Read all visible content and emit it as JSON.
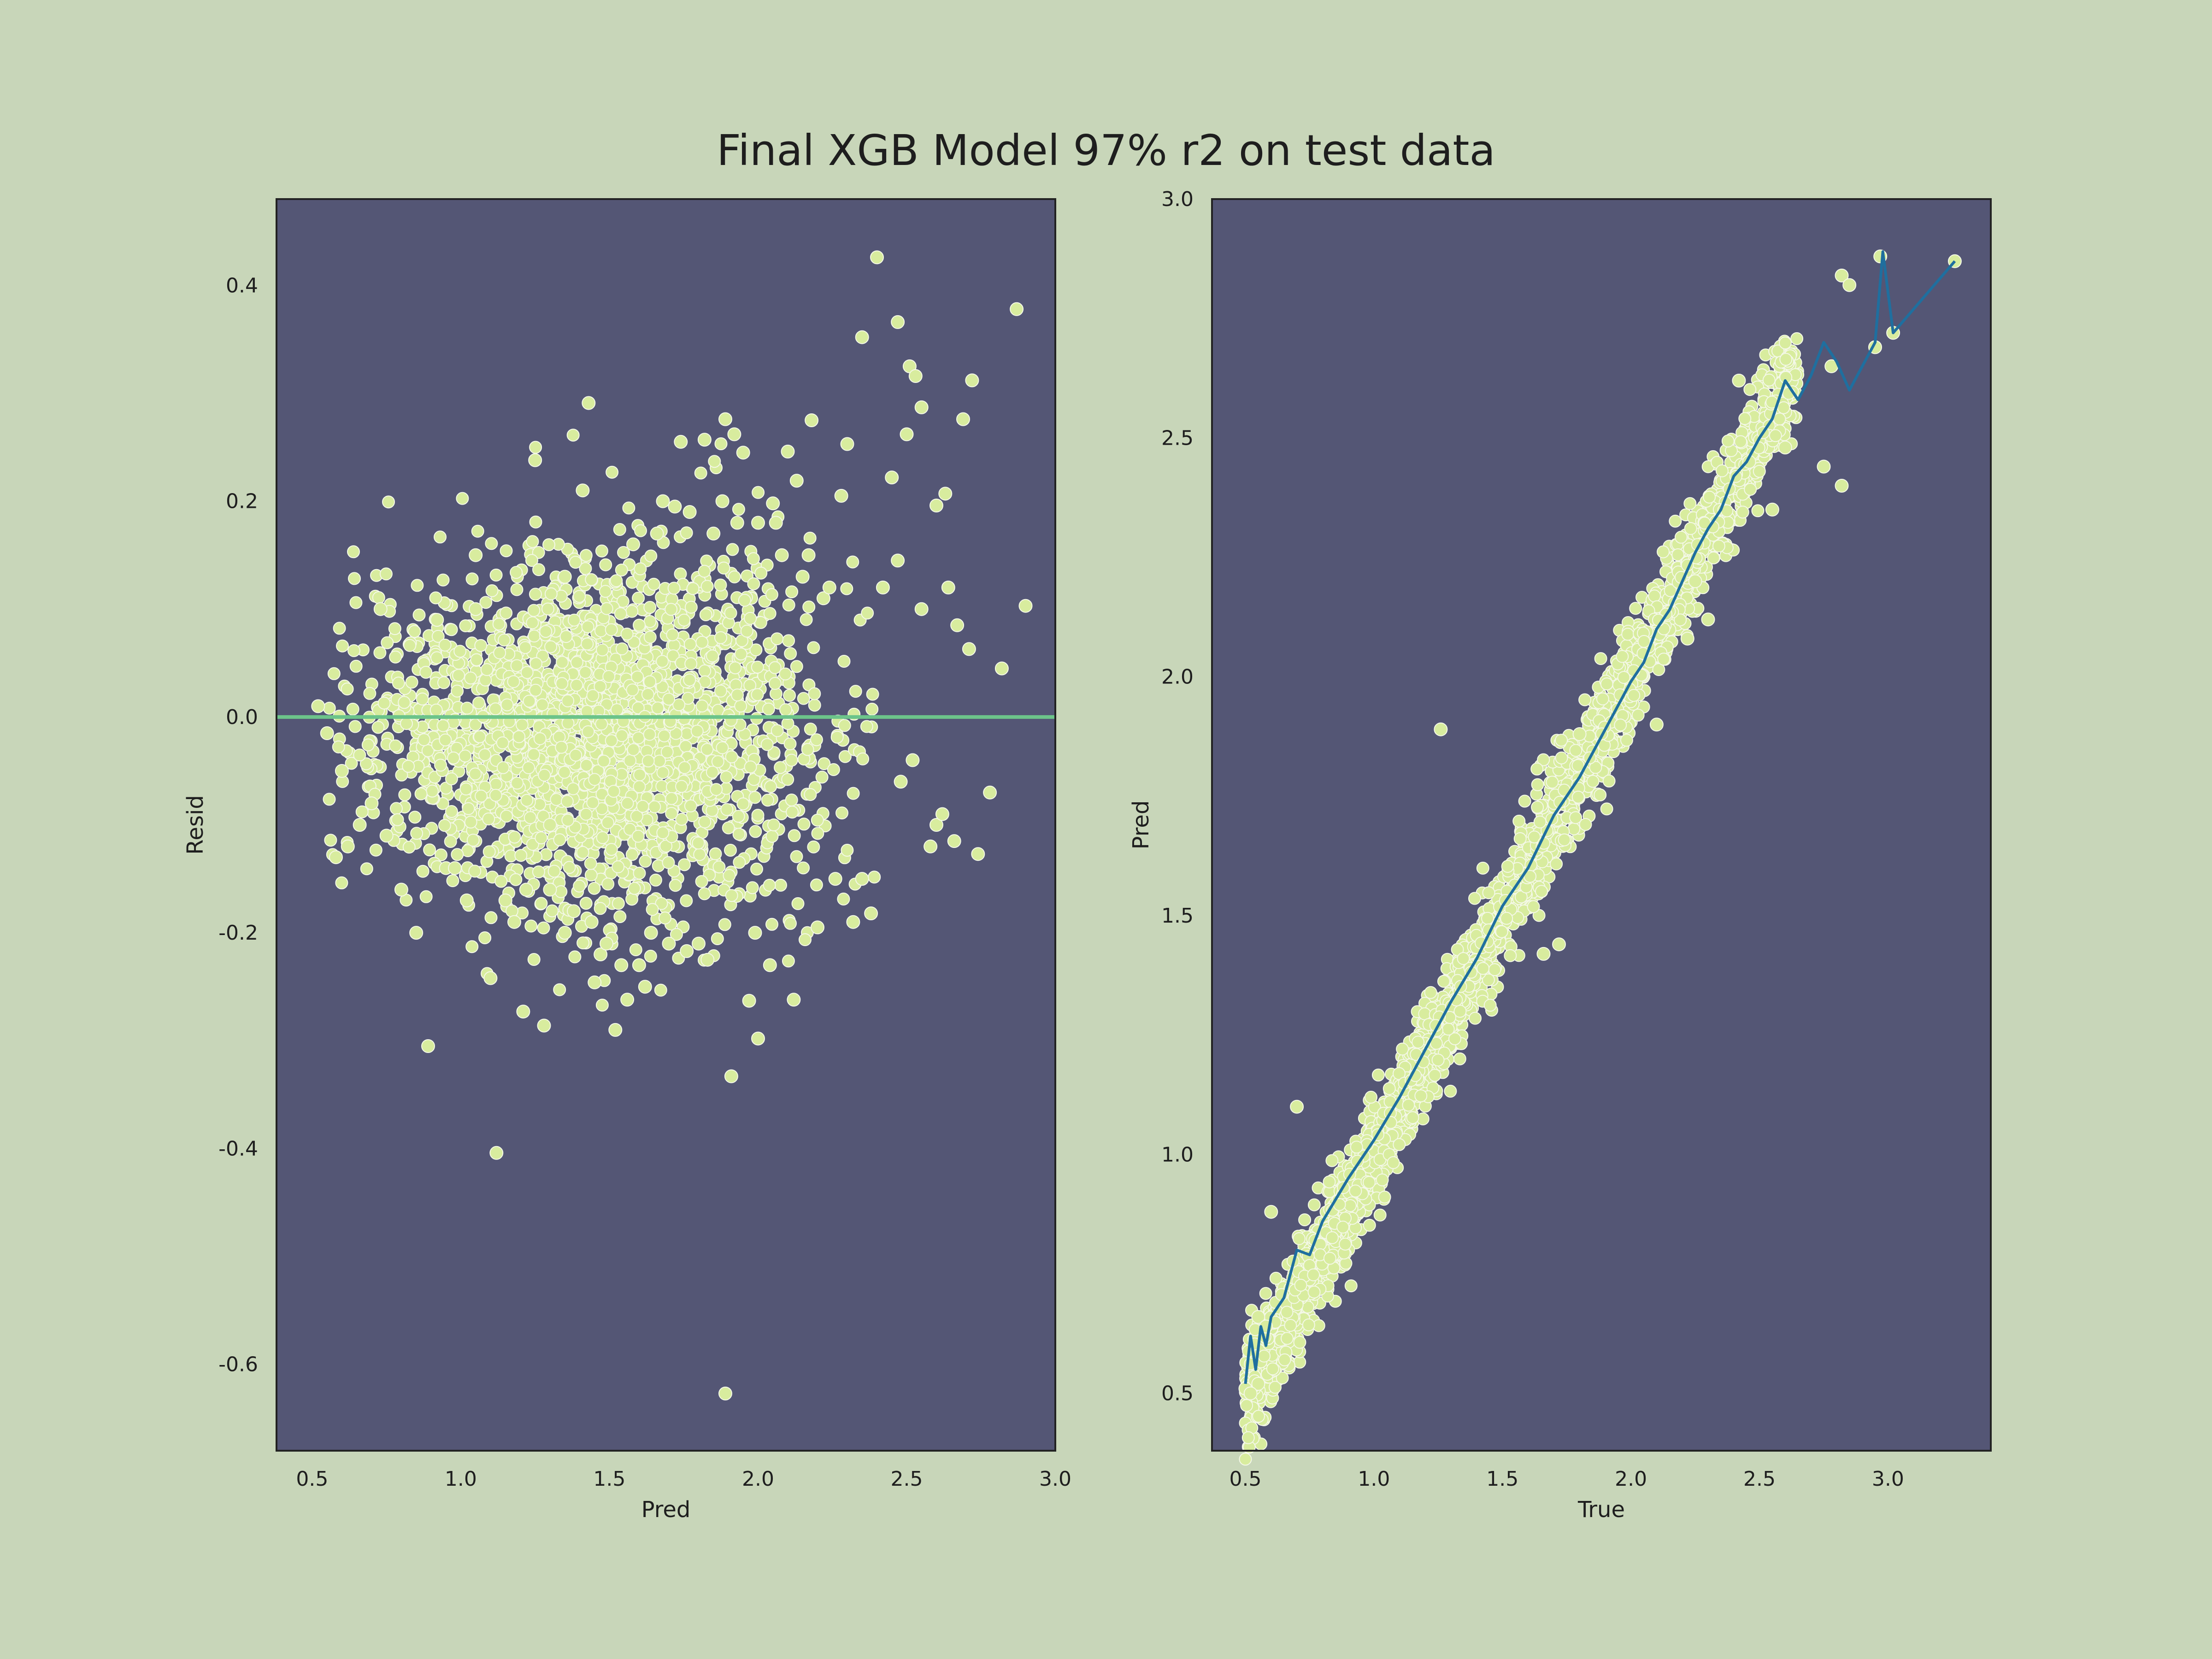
{
  "figure": {
    "title": "Final XGB Model 97% r2 on test data",
    "background": "#c8d6b9",
    "plot_background": "#545675",
    "point_color": "#d8ec9e",
    "point_edge": "#f4f8e8",
    "line_color": "#1f6f9f",
    "zero_line_color": "#6cc48a",
    "frame_color": "#222222"
  },
  "chart_data": [
    {
      "type": "scatter",
      "xlabel": "Pred",
      "ylabel": "Resid",
      "xlim": [
        0.38,
        3.0
      ],
      "ylim": [
        -0.68,
        0.48
      ],
      "xticks": [
        0.5,
        1.0,
        1.5,
        2.0,
        2.5,
        3.0
      ],
      "xtick_labels": [
        "0.5",
        "1.0",
        "1.5",
        "2.0",
        "2.5",
        "3.0"
      ],
      "yticks": [
        0.4,
        0.2,
        0.0,
        -0.2,
        -0.4,
        -0.6
      ],
      "ytick_labels": [
        "0.4",
        "0.2",
        "0.0",
        "-0.2",
        "-0.4",
        "-0.6"
      ],
      "hline": 0.0,
      "series": [
        {
          "x": [
            2.4,
            2.47,
            2.87,
            2.35,
            2.51,
            2.53,
            2.72,
            2.55,
            2.69,
            1.43,
            1.89,
            1.92,
            2.18,
            1.82,
            1.95,
            2.1,
            1.74,
            1.25,
            2.5,
            2.3,
            2.45,
            2.63,
            2.6,
            2.13,
            2.28,
            2.05,
            0.89,
            1.12,
            1.21,
            1.28,
            1.1,
            1.89,
            2.0,
            1.97,
            1.91,
            2.12,
            1.62,
            1.52,
            1.56,
            1.45,
            1.76,
            1.83,
            2.2,
            2.32,
            2.38,
            2.66,
            2.58,
            2.6,
            2.74,
            2.78,
            2.9,
            2.82,
            2.71,
            2.67,
            2.64,
            2.55,
            2.47,
            2.42,
            1.35,
            1.58,
            1.41,
            1.72,
            1.66,
            1.88,
            1.93,
            2.22,
            2.08,
            2.15,
            0.55,
            0.52,
            0.6,
            0.66,
            0.7,
            0.62,
            0.58,
            0.75,
            1.3,
            1.35,
            1.47,
            1.8,
            1.05,
            0.92,
            0.95,
            0.85,
            0.8,
            0.73,
            2.04,
            1.99,
            2.26,
            1.6,
            1.64,
            1.7,
            1.15,
            1.18,
            1.22,
            0.98,
            1.02,
            2.35,
            2.48,
            2.52,
            2.62,
            1.38,
            1.44,
            1.49,
            1.54,
            1.3,
            1.05,
            2.0,
            1.85,
            1.77,
            1.68,
            2.24,
            2.17,
            2.06
          ],
          "y": [
            0.426,
            0.366,
            0.378,
            0.352,
            0.325,
            0.316,
            0.312,
            0.287,
            0.276,
            0.291,
            0.276,
            0.262,
            0.275,
            0.257,
            0.245,
            0.246,
            0.255,
            0.238,
            0.262,
            0.253,
            0.222,
            0.207,
            0.196,
            0.219,
            0.205,
            0.198,
            -0.305,
            -0.404,
            -0.273,
            -0.286,
            -0.242,
            -0.627,
            -0.298,
            -0.263,
            -0.333,
            -0.262,
            -0.25,
            -0.29,
            -0.262,
            -0.246,
            -0.217,
            -0.225,
            -0.195,
            -0.19,
            -0.182,
            -0.115,
            -0.12,
            -0.1,
            -0.127,
            -0.07,
            0.103,
            0.045,
            0.063,
            0.085,
            0.12,
            0.1,
            0.145,
            0.12,
            0.13,
            0.16,
            0.21,
            0.195,
            0.17,
            0.2,
            0.18,
            0.11,
            0.15,
            0.13,
            -0.015,
            0.01,
            -0.05,
            -0.1,
            -0.08,
            -0.12,
            -0.13,
            -0.11,
            -0.16,
            -0.2,
            -0.22,
            -0.21,
            0.15,
            0.09,
            -0.14,
            -0.2,
            -0.16,
            0.1,
            -0.23,
            -0.2,
            -0.15,
            -0.23,
            -0.2,
            -0.21,
            -0.17,
            -0.19,
            -0.16,
            -0.14,
            -0.17,
            -0.15,
            -0.06,
            -0.04,
            -0.09,
            -0.18,
            -0.19,
            -0.21,
            -0.23,
            -0.1,
            0.1,
            0.18,
            0.17,
            0.19,
            0.2,
            0.12,
            0.15,
            0.18
          ]
        }
      ],
      "cloud": {
        "x_range": [
          0.55,
          2.4
        ],
        "y_spread": 0.16
      }
    },
    {
      "type": "scatter",
      "xlabel": "True",
      "ylabel": "Pred",
      "xlim": [
        0.37,
        3.4
      ],
      "ylim": [
        0.38,
        3.0
      ],
      "xticks": [
        0.5,
        1.0,
        1.5,
        2.0,
        2.5,
        3.0
      ],
      "xtick_labels": [
        "0.5",
        "1.0",
        "1.5",
        "2.0",
        "2.5",
        "3.0"
      ],
      "yticks": [
        3.0,
        2.5,
        2.0,
        1.5,
        1.0,
        0.5
      ],
      "ytick_labels": [
        "3.0",
        "2.5",
        "2.0",
        "1.5",
        "1.0",
        "0.5"
      ],
      "series": [
        {
          "x": [
            1.26,
            0.7,
            0.55,
            0.6,
            2.82,
            2.85,
            2.97,
            3.02,
            3.26,
            2.95,
            2.82,
            2.75,
            2.78,
            2.6,
            2.55,
            2.46,
            2.42,
            2.3,
            2.22,
            2.25,
            2.1,
            1.66,
            1.72,
            1.8,
            0.55,
            0.58,
            0.5,
            0.52
          ],
          "y": [
            1.89,
            1.1,
            0.52,
            0.88,
            2.84,
            2.82,
            2.88,
            2.72,
            2.87,
            2.69,
            2.4,
            2.44,
            2.65,
            2.48,
            2.35,
            2.45,
            2.62,
            2.12,
            2.08,
            2.2,
            1.9,
            1.42,
            1.44,
            1.88,
            0.66,
            0.64,
            0.51,
            0.5
          ]
        }
      ],
      "trend_line": {
        "x": [
          0.5,
          0.52,
          0.54,
          0.56,
          0.58,
          0.6,
          0.65,
          0.7,
          0.75,
          0.8,
          0.9,
          1.0,
          1.1,
          1.2,
          1.3,
          1.4,
          1.5,
          1.6,
          1.7,
          1.8,
          1.9,
          2.0,
          2.05,
          2.1,
          2.15,
          2.2,
          2.25,
          2.3,
          2.35,
          2.4,
          2.45,
          2.5,
          2.55,
          2.6,
          2.65,
          2.7,
          2.75,
          2.8,
          2.85,
          2.9,
          2.95,
          2.98,
          3.02,
          3.26
        ],
        "y": [
          0.52,
          0.62,
          0.55,
          0.64,
          0.6,
          0.66,
          0.7,
          0.8,
          0.79,
          0.86,
          0.95,
          1.03,
          1.12,
          1.22,
          1.32,
          1.41,
          1.52,
          1.6,
          1.71,
          1.79,
          1.89,
          1.99,
          2.03,
          2.1,
          2.14,
          2.2,
          2.26,
          2.31,
          2.35,
          2.42,
          2.45,
          2.5,
          2.54,
          2.62,
          2.58,
          2.63,
          2.7,
          2.66,
          2.6,
          2.65,
          2.7,
          2.89,
          2.72,
          2.87
        ]
      },
      "cloud": {
        "x_range": [
          0.5,
          2.65
        ],
        "y_spread": 0.055
      }
    }
  ]
}
